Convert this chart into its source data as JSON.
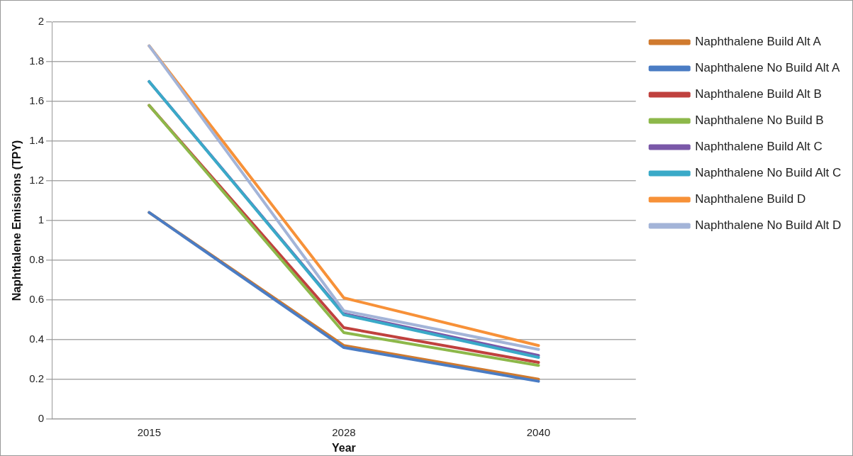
{
  "chart_data": {
    "type": "line",
    "xlabel": "Year",
    "ylabel": "Naphthalene Emissions (TPY)",
    "categories": [
      "2015",
      "2028",
      "2040"
    ],
    "ylim": [
      0,
      2
    ],
    "yticks": [
      0,
      0.2,
      0.4,
      0.6,
      0.8,
      1,
      1.2,
      1.4,
      1.6,
      1.8,
      2
    ],
    "grid": "y",
    "legend": "right",
    "marker": "none",
    "line_style": "solid",
    "series": [
      {
        "name": "Naphthalene Build Alt A",
        "color": "#d07a2e",
        "values": [
          1.04,
          0.37,
          0.2
        ]
      },
      {
        "name": "Naphthalene No Build Alt A",
        "color": "#4a7cc4",
        "values": [
          1.04,
          0.36,
          0.19
        ]
      },
      {
        "name": "Naphthalene Build Alt B",
        "color": "#c0413e",
        "values": [
          1.58,
          0.46,
          0.285
        ]
      },
      {
        "name": "Naphthalene No Build B",
        "color": "#8db84a",
        "values": [
          1.58,
          0.435,
          0.27
        ]
      },
      {
        "name": "Naphthalene Build Alt C",
        "color": "#7a58a8",
        "values": [
          1.7,
          0.53,
          0.32
        ]
      },
      {
        "name": "Naphthalene No Build Alt C",
        "color": "#3aaac8",
        "values": [
          1.7,
          0.525,
          0.31
        ]
      },
      {
        "name": "Naphthalene Build D",
        "color": "#f79138",
        "values": [
          1.88,
          0.61,
          0.37
        ]
      },
      {
        "name": "Naphthalene No Build Alt D",
        "color": "#a3b4d8",
        "values": [
          1.88,
          0.545,
          0.35
        ]
      }
    ]
  }
}
